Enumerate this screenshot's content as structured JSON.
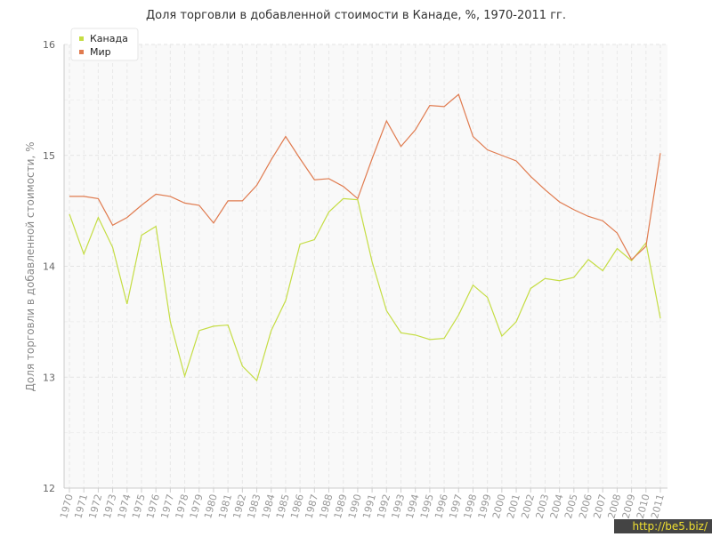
{
  "chart_data": {
    "type": "line",
    "title": "Доля торговли в добавленной стоимости в Канаде, %, 1970-2011 гг.",
    "y_label": "Доля торговли в добавленной стоимости, %",
    "x": [
      1970,
      1971,
      1972,
      1973,
      1974,
      1975,
      1976,
      1977,
      1978,
      1979,
      1980,
      1981,
      1982,
      1983,
      1984,
      1985,
      1986,
      1987,
      1988,
      1989,
      1990,
      1991,
      1992,
      1993,
      1994,
      1995,
      1996,
      1997,
      1998,
      1999,
      2000,
      2001,
      2002,
      2003,
      2004,
      2005,
      2006,
      2007,
      2008,
      2009,
      2010,
      2011
    ],
    "xlim": [
      1970,
      2011
    ],
    "ylim": [
      12,
      16
    ],
    "yticks": [
      12,
      13,
      14,
      15,
      16
    ],
    "grid": true,
    "legend": "top-left",
    "series": [
      {
        "name": "Канада",
        "color": "#c5dd44",
        "values": [
          14.47,
          14.11,
          14.44,
          14.17,
          13.66,
          14.28,
          14.36,
          13.5,
          13.01,
          13.42,
          13.46,
          13.47,
          13.1,
          12.97,
          13.42,
          13.69,
          14.2,
          14.24,
          14.49,
          14.61,
          14.6,
          14.04,
          13.6,
          13.4,
          13.38,
          13.34,
          13.35,
          13.56,
          13.83,
          13.72,
          13.37,
          13.5,
          13.8,
          13.89,
          13.87,
          13.9,
          14.06,
          13.96,
          14.16,
          14.05,
          14.21,
          13.53
        ]
      },
      {
        "name": "Мир",
        "color": "#e07b4f",
        "values": [
          14.63,
          14.63,
          14.61,
          14.37,
          14.44,
          14.55,
          14.65,
          14.63,
          14.57,
          14.55,
          14.39,
          14.59,
          14.59,
          14.73,
          14.96,
          15.17,
          14.97,
          14.78,
          14.79,
          14.72,
          14.61,
          14.97,
          15.31,
          15.08,
          15.23,
          15.45,
          15.44,
          15.55,
          15.17,
          15.05,
          15.0,
          14.95,
          14.81,
          14.69,
          14.58,
          14.51,
          14.45,
          14.41,
          14.3,
          14.06,
          14.18,
          15.02
        ]
      }
    ]
  },
  "watermark": "http://be5.biz/"
}
